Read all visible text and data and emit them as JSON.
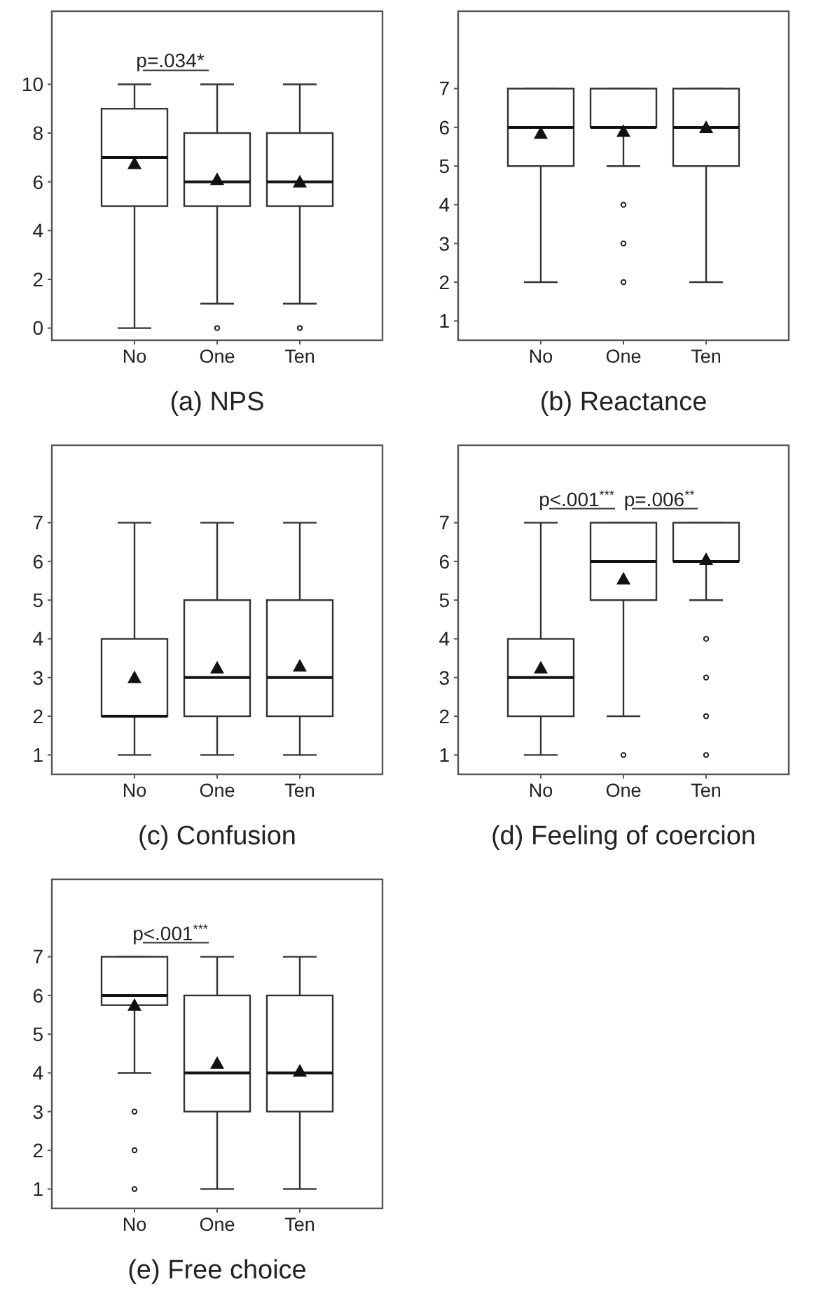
{
  "chart_data": [
    {
      "type": "box",
      "title": "(a) NPS",
      "categories": [
        "No",
        "One",
        "Ten"
      ],
      "ylim": [
        -0.5,
        13
      ],
      "yticks": [
        0,
        2,
        4,
        6,
        8,
        10
      ],
      "grid": false,
      "annotations": [
        "p=.034*"
      ],
      "boxes": [
        {
          "low": 0,
          "q1": 5,
          "median": 7,
          "q3": 9,
          "high": 10,
          "mean": 6.75
        },
        {
          "low": 1,
          "q1": 5,
          "median": 6,
          "q3": 8,
          "high": 10,
          "mean": 6.1,
          "outliers": [
            0
          ]
        },
        {
          "low": 1,
          "q1": 5,
          "median": 6,
          "q3": 8,
          "high": 10,
          "mean": 6.0,
          "outliers": [
            0
          ]
        }
      ]
    },
    {
      "type": "box",
      "title": "(b) Reactance",
      "categories": [
        "No",
        "One",
        "Ten"
      ],
      "ylim": [
        0.5,
        9
      ],
      "yticks": [
        1,
        2,
        3,
        4,
        5,
        6,
        7
      ],
      "grid": false,
      "boxes": [
        {
          "low": 2,
          "q1": 5,
          "median": 6,
          "q3": 7,
          "high": 7,
          "mean": 5.85
        },
        {
          "low": 5,
          "q1": 6,
          "median": 6,
          "q3": 7,
          "high": 7,
          "mean": 5.9,
          "outliers": [
            4,
            3,
            2
          ]
        },
        {
          "low": 2,
          "q1": 5,
          "median": 6,
          "q3": 7,
          "high": 7,
          "mean": 6.0
        }
      ]
    },
    {
      "type": "box",
      "title": "(c) Confusion",
      "categories": [
        "No",
        "One",
        "Ten"
      ],
      "ylim": [
        0.5,
        9
      ],
      "yticks": [
        1,
        2,
        3,
        4,
        5,
        6,
        7
      ],
      "grid": false,
      "boxes": [
        {
          "low": 1,
          "q1": 2,
          "median": 2,
          "q3": 4,
          "high": 7,
          "mean": 3.0
        },
        {
          "low": 1,
          "q1": 2,
          "median": 3,
          "q3": 5,
          "high": 7,
          "mean": 3.25
        },
        {
          "low": 1,
          "q1": 2,
          "median": 3,
          "q3": 5,
          "high": 7,
          "mean": 3.3
        }
      ]
    },
    {
      "type": "box",
      "title": "(d) Feeling of coercion",
      "categories": [
        "No",
        "One",
        "Ten"
      ],
      "ylim": [
        0.5,
        9
      ],
      "yticks": [
        1,
        2,
        3,
        4,
        5,
        6,
        7
      ],
      "grid": false,
      "annotations": [
        "p<.001$^{***}$",
        "p=.006$^{**}$"
      ],
      "boxes": [
        {
          "low": 1,
          "q1": 2,
          "median": 3,
          "q3": 4,
          "high": 7,
          "mean": 3.25
        },
        {
          "low": 2,
          "q1": 5,
          "median": 6,
          "q3": 7,
          "high": 7,
          "mean": 5.55,
          "outliers": [
            1
          ]
        },
        {
          "low": 5,
          "q1": 6,
          "median": 6,
          "q3": 7,
          "high": 7,
          "mean": 6.05,
          "outliers": [
            4,
            3,
            2,
            1
          ]
        }
      ]
    },
    {
      "type": "box",
      "title": "(e) Free choice",
      "categories": [
        "No",
        "One",
        "Ten"
      ],
      "ylim": [
        0.5,
        9
      ],
      "yticks": [
        1,
        2,
        3,
        4,
        5,
        6,
        7
      ],
      "grid": false,
      "annotations": [
        "p<.001$^{***}$"
      ],
      "boxes": [
        {
          "low": 4,
          "q1": 5.75,
          "median": 6,
          "q3": 7,
          "high": 7,
          "mean": 5.75,
          "outliers": [
            3,
            2,
            1
          ]
        },
        {
          "low": 1,
          "q1": 3,
          "median": 4,
          "q3": 6,
          "high": 7,
          "mean": 4.25
        },
        {
          "low": 1,
          "q1": 3,
          "median": 4,
          "q3": 6,
          "high": 7,
          "mean": 4.05
        }
      ]
    }
  ]
}
